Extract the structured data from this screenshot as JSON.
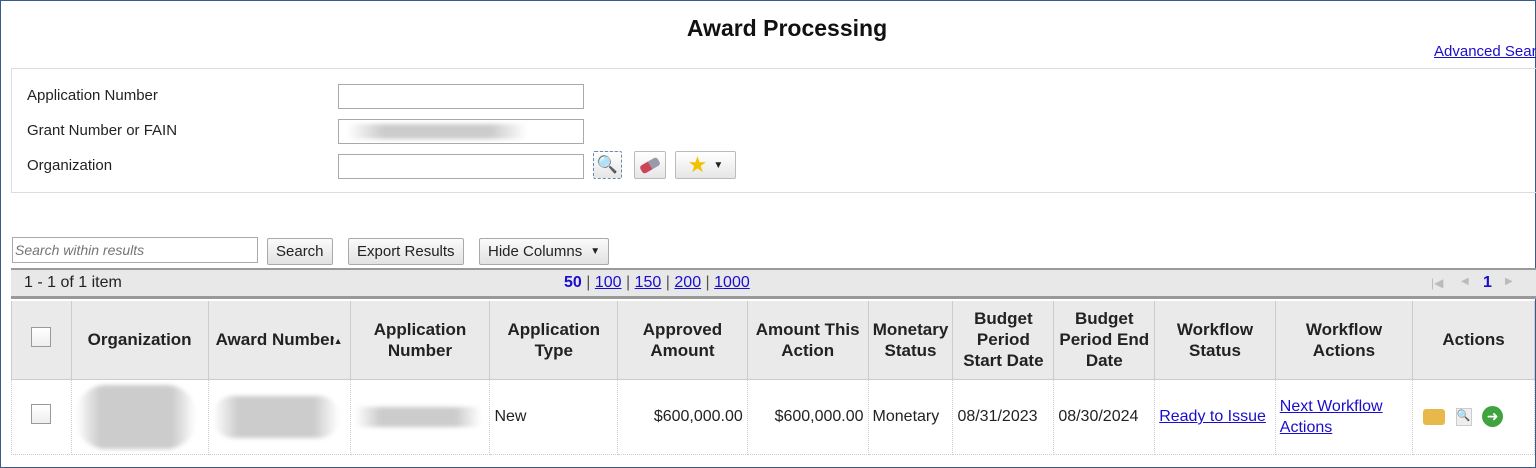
{
  "page": {
    "title": "Award Processing",
    "advanced_search": "Advanced Search"
  },
  "form": {
    "application_number_label": "Application Number",
    "grant_number_label": "Grant Number or FAIN",
    "organization_label": "Organization",
    "application_number_value": "",
    "organization_value": ""
  },
  "toolbar": {
    "search_placeholder": "Search within results",
    "search_label": "Search",
    "export_label": "Export Results",
    "hide_columns_label": "Hide Columns"
  },
  "pager": {
    "summary": "1 - 1 of 1 item",
    "page_sizes": [
      "50",
      "100",
      "150",
      "200",
      "1000"
    ],
    "selected_page_size": "50",
    "current_page": "1"
  },
  "table": {
    "columns": [
      "Organization",
      "Award Number",
      "Application Number",
      "Application Type",
      "Approved Amount",
      "Amount This Action",
      "Monetary Status",
      "Budget Period Start Date",
      "Budget Period End Date",
      "Workflow Status",
      "Workflow Actions",
      "Actions"
    ],
    "sorted_column": "Award Number",
    "rows": [
      {
        "application_type": "New",
        "approved_amount": "$600,000.00",
        "amount_this_action": "$600,000.00",
        "monetary_status": "Monetary",
        "start_date": "08/31/2023",
        "end_date": "08/30/2024",
        "workflow_status": "Ready to Issue",
        "workflow_actions": "Next Workflow Actions"
      }
    ]
  },
  "icons": {
    "lookup": "magnifier-icon",
    "clear": "eraser-icon",
    "favorites": "star-icon",
    "row_actions": [
      "folder-edit-icon",
      "preview-icon",
      "go-arrow-icon"
    ]
  },
  "colors": {
    "link": "#1a0dcc",
    "header_bg": "#eaeaea"
  }
}
